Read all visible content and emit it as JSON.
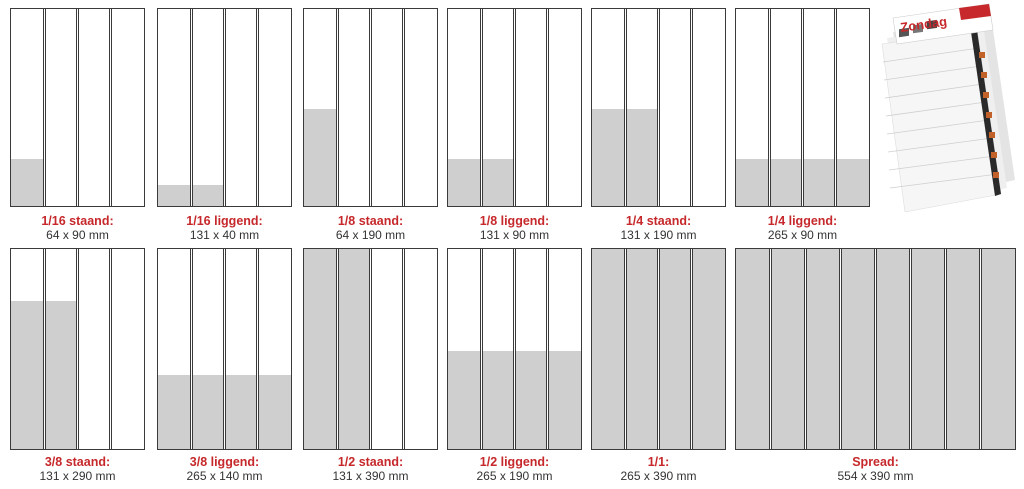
{
  "formats": [
    {
      "name": "1/16 staand:",
      "size": "64 x 90 mm",
      "columns": 4,
      "fill": {
        "columns": 1,
        "height_fraction": 0.24
      }
    },
    {
      "name": "1/16 liggend:",
      "size": "131 x 40 mm",
      "columns": 4,
      "fill": {
        "columns": 2,
        "height_fraction": 0.107
      }
    },
    {
      "name": "1/8 staand:",
      "size": "64 x 190 mm",
      "columns": 4,
      "fill": {
        "columns": 1,
        "height_fraction": 0.49
      }
    },
    {
      "name": "1/8 liggend:",
      "size": "131 x 90 mm",
      "columns": 4,
      "fill": {
        "columns": 2,
        "height_fraction": 0.24
      }
    },
    {
      "name": "1/4 staand:",
      "size": "131 x 190 mm",
      "columns": 4,
      "fill": {
        "columns": 2,
        "height_fraction": 0.49
      }
    },
    {
      "name": "1/4 liggend:",
      "size": "265 x 90 mm",
      "columns": 4,
      "fill": {
        "columns": 4,
        "height_fraction": 0.24
      }
    },
    {
      "name": "3/8 staand:",
      "size": "131 x 290 mm",
      "columns": 4,
      "fill": {
        "columns": 2,
        "height_fraction": 0.74
      }
    },
    {
      "name": "3/8 liggend:",
      "size": "265 x 140 mm",
      "columns": 4,
      "fill": {
        "columns": 4,
        "height_fraction": 0.37
      }
    },
    {
      "name": "1/2 staand:",
      "size": "131 x 390 mm",
      "columns": 4,
      "fill": {
        "columns": 2,
        "height_fraction": 1.0
      }
    },
    {
      "name": "1/2 liggend:",
      "size": "265 x 190 mm",
      "columns": 4,
      "fill": {
        "columns": 4,
        "height_fraction": 0.49
      }
    },
    {
      "name": "1/1:",
      "size": "265 x 390 mm",
      "columns": 4,
      "fill": {
        "columns": 4,
        "height_fraction": 1.0
      }
    },
    {
      "name": "Spread:",
      "size": "554 x 390 mm",
      "columns": 8,
      "fill": {
        "columns": 8,
        "height_fraction": 1.0
      }
    }
  ],
  "colors": {
    "label_accent": "#c6282b",
    "ad_fill": "#cfcfcf",
    "page_border": "#3a3a3a"
  },
  "newspaper_image": {
    "masthead": "Zondag"
  }
}
